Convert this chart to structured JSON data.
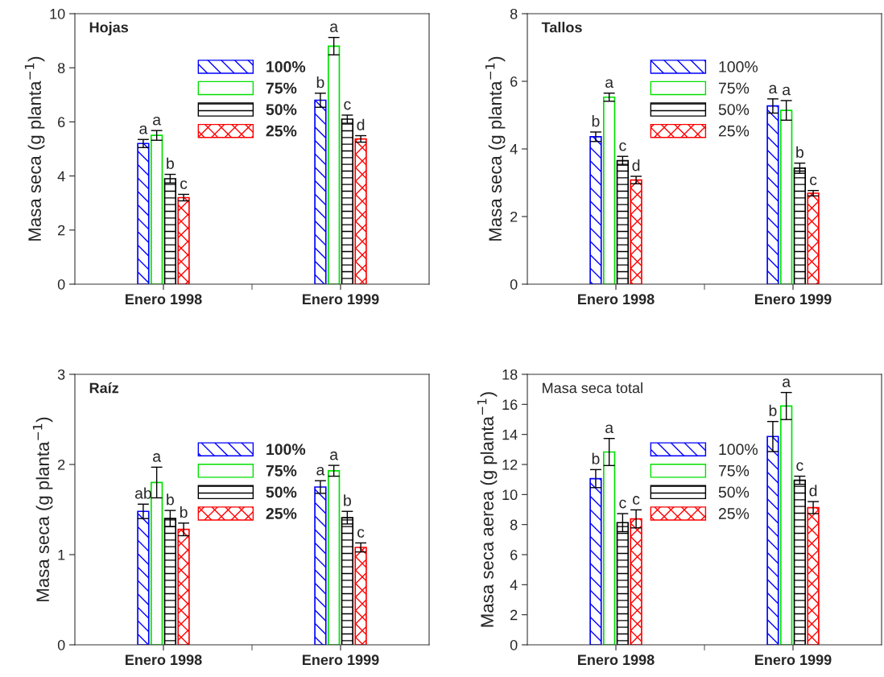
{
  "chart_data": [
    {
      "type": "bar",
      "title": "Hojas",
      "ylabel": "Masa seca (g planta$^{−1}$)",
      "categories": [
        "Enero 1998",
        "Enero 1999"
      ],
      "ylim": [
        0,
        10
      ],
      "yticks": [
        0,
        2,
        4,
        6,
        8,
        10
      ],
      "grid": false,
      "legend": "top",
      "series": [
        {
          "name": "100%",
          "color": "#0000ff",
          "values": [
            5.2,
            6.8
          ],
          "errors": [
            0.15,
            0.26
          ],
          "value_labels": [
            "a",
            "b"
          ]
        },
        {
          "name": "75%",
          "color": "#00e000",
          "values": [
            5.5,
            8.8
          ],
          "errors": [
            0.18,
            0.32
          ],
          "value_labels": [
            "a",
            "a"
          ]
        },
        {
          "name": "50%",
          "color": "#000000",
          "values": [
            3.9,
            6.1
          ],
          "errors": [
            0.16,
            0.15
          ],
          "value_labels": [
            "b",
            "c"
          ]
        },
        {
          "name": "25%",
          "color": "#ff0000",
          "values": [
            3.2,
            5.37
          ],
          "errors": [
            0.12,
            0.12
          ],
          "value_labels": [
            "c",
            "d"
          ]
        }
      ]
    },
    {
      "type": "bar",
      "title": "Tallos",
      "ylabel": "Masa seca (g planta$^{−1}$)",
      "categories": [
        "Enero 1998",
        "Enero 1999"
      ],
      "ylim": [
        0,
        8
      ],
      "yticks": [
        0,
        2,
        4,
        6,
        8
      ],
      "grid": false,
      "legend": "top",
      "series": [
        {
          "name": "100%",
          "color": "#0000ff",
          "values": [
            4.36,
            5.27
          ],
          "errors": [
            0.14,
            0.21
          ],
          "value_labels": [
            "b",
            "a"
          ]
        },
        {
          "name": "75%",
          "color": "#00e000",
          "values": [
            5.53,
            5.14
          ],
          "errors": [
            0.12,
            0.29
          ],
          "value_labels": [
            "a",
            "a"
          ]
        },
        {
          "name": "50%",
          "color": "#000000",
          "values": [
            3.65,
            3.43
          ],
          "errors": [
            0.13,
            0.15
          ],
          "value_labels": [
            "c",
            "b"
          ]
        },
        {
          "name": "25%",
          "color": "#ff0000",
          "values": [
            3.08,
            2.69
          ],
          "errors": [
            0.11,
            0.08
          ],
          "value_labels": [
            "d",
            "c"
          ]
        }
      ]
    },
    {
      "type": "bar",
      "title": "Raíz",
      "ylabel": "Masa seca (g planta$^{−1}$)",
      "categories": [
        "Enero 1998",
        "Enero 1999"
      ],
      "ylim": [
        0,
        3
      ],
      "yticks": [
        0,
        1,
        2,
        3
      ],
      "grid": false,
      "legend": "center",
      "series": [
        {
          "name": "100%",
          "color": "#0000ff",
          "values": [
            1.48,
            1.75
          ],
          "errors": [
            0.08,
            0.07
          ],
          "value_labels": [
            "ab",
            "a"
          ]
        },
        {
          "name": "75%",
          "color": "#00e000",
          "values": [
            1.8,
            1.93
          ],
          "errors": [
            0.17,
            0.06
          ],
          "value_labels": [
            "a",
            "a"
          ]
        },
        {
          "name": "50%",
          "color": "#000000",
          "values": [
            1.4,
            1.41
          ],
          "errors": [
            0.09,
            0.07
          ],
          "value_labels": [
            "b",
            "b"
          ]
        },
        {
          "name": "25%",
          "color": "#ff0000",
          "values": [
            1.28,
            1.08
          ],
          "errors": [
            0.07,
            0.05
          ],
          "value_labels": [
            "b",
            "c"
          ]
        }
      ]
    },
    {
      "type": "bar",
      "title": "Masa seca total",
      "ylabel": "Masa seca aerea (g planta$^{−1}$)",
      "categories": [
        "Enero 1998",
        "Enero 1999"
      ],
      "ylim": [
        0,
        18
      ],
      "yticks": [
        0,
        2,
        4,
        6,
        8,
        10,
        12,
        14,
        16,
        18
      ],
      "grid": false,
      "legend": "center",
      "series": [
        {
          "name": "100%",
          "color": "#0000ff",
          "values": [
            11.06,
            13.86
          ],
          "errors": [
            0.6,
            1.0
          ],
          "value_labels": [
            "b",
            "b"
          ]
        },
        {
          "name": "75%",
          "color": "#00e000",
          "values": [
            12.83,
            15.89
          ],
          "errors": [
            0.9,
            0.9
          ],
          "value_labels": [
            "a",
            "a"
          ]
        },
        {
          "name": "50%",
          "color": "#000000",
          "values": [
            8.13,
            10.95
          ],
          "errors": [
            0.6,
            0.27
          ],
          "value_labels": [
            "c",
            "c"
          ]
        },
        {
          "name": "25%",
          "color": "#ff0000",
          "values": [
            8.38,
            9.13
          ],
          "errors": [
            0.6,
            0.4
          ],
          "value_labels": [
            "c",
            "d"
          ]
        }
      ]
    }
  ]
}
